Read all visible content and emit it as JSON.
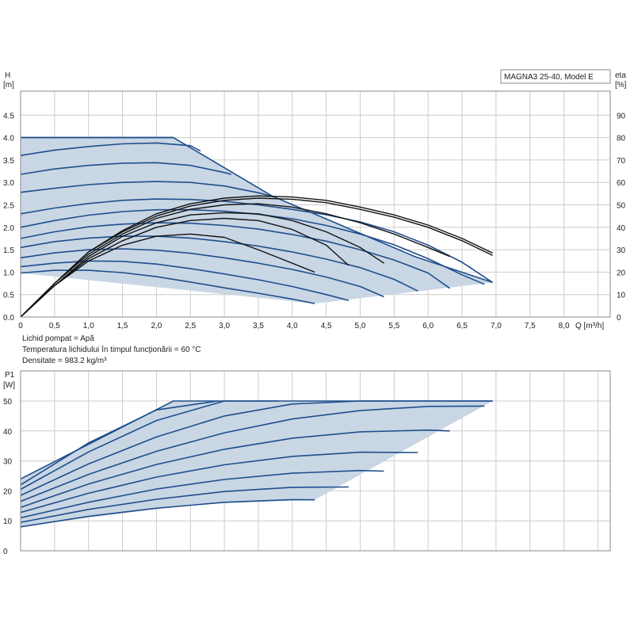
{
  "chart_data": [
    {
      "type": "line",
      "title": "MAGNA3 25-40, Model E",
      "xlabel": "Q [m³/h]",
      "ylabel": "H [m]",
      "y2label": "eta [%]",
      "xlim": [
        0,
        8.6
      ],
      "ylim": [
        0,
        5.0
      ],
      "y2lim": [
        0,
        100
      ],
      "x_ticks": [
        "0",
        "0,5",
        "1,0",
        "1,5",
        "2,0",
        "2,5",
        "3,0",
        "3,5",
        "4,0",
        "4,5",
        "5,0",
        "5,5",
        "6,0",
        "6,5",
        "7,0",
        "7,5",
        "8,0"
      ],
      "y_ticks": [
        "0.0",
        "0.5",
        "1.0",
        "1.5",
        "2.0",
        "2.5",
        "3.0",
        "3.5",
        "4.0",
        "4.5"
      ],
      "y2_ticks": [
        "0",
        "10",
        "20",
        "30",
        "40",
        "50",
        "60",
        "70",
        "80",
        "90"
      ],
      "grid": true,
      "operating_area": [
        [
          0,
          4.0
        ],
        [
          2.25,
          4.0
        ],
        [
          3.7,
          2.7
        ],
        [
          5.8,
          1.35
        ],
        [
          6.95,
          0.77
        ],
        [
          4.33,
          0.3
        ],
        [
          0,
          0.98
        ]
      ],
      "series": [
        {
          "x": [
            0,
            2.25,
            3.7,
            5.8,
            6.95
          ],
          "y": [
            4.0,
            4.0,
            2.7,
            1.35,
            0.77
          ]
        },
        {
          "x": [
            0,
            0.5,
            1.0,
            1.5,
            2.0,
            2.5,
            3.0,
            3.5,
            4.0,
            4.33
          ],
          "y": [
            0.98,
            1.04,
            1.04,
            0.99,
            0.9,
            0.78,
            0.65,
            0.53,
            0.4,
            0.3
          ]
        },
        {
          "x": [
            0,
            0.5,
            1.0,
            1.5,
            2.0,
            2.5,
            3.0,
            3.5,
            4.0,
            4.5,
            4.83
          ],
          "y": [
            1.12,
            1.2,
            1.25,
            1.24,
            1.18,
            1.08,
            0.96,
            0.83,
            0.68,
            0.5,
            0.37
          ]
        },
        {
          "x": [
            0,
            0.5,
            1.0,
            1.5,
            2.0,
            2.5,
            3.0,
            3.5,
            4.0,
            4.5,
            5.0,
            5.35
          ],
          "y": [
            1.32,
            1.43,
            1.5,
            1.52,
            1.49,
            1.42,
            1.32,
            1.2,
            1.06,
            0.89,
            0.68,
            0.45
          ]
        },
        {
          "x": [
            0,
            0.5,
            1.0,
            1.5,
            2.0,
            2.5,
            3.0,
            3.5,
            4.0,
            4.5,
            5.0,
            5.5,
            5.85
          ],
          "y": [
            1.55,
            1.68,
            1.76,
            1.8,
            1.8,
            1.76,
            1.68,
            1.58,
            1.45,
            1.29,
            1.1,
            0.84,
            0.58
          ]
        },
        {
          "x": [
            0,
            0.5,
            1.0,
            1.5,
            2.0,
            2.5,
            3.0,
            3.5,
            4.0,
            4.5,
            5.0,
            5.5,
            6.0,
            6.32
          ],
          "y": [
            1.75,
            1.9,
            2.01,
            2.07,
            2.1,
            2.09,
            2.04,
            1.96,
            1.84,
            1.69,
            1.5,
            1.27,
            0.98,
            0.64
          ]
        },
        {
          "x": [
            0,
            0.5,
            1.0,
            1.5,
            2.0,
            2.5,
            3.0,
            3.5,
            4.0,
            4.5,
            5.0,
            5.5,
            6.0,
            6.5,
            6.83
          ],
          "y": [
            2.0,
            2.15,
            2.27,
            2.35,
            2.39,
            2.39,
            2.36,
            2.29,
            2.19,
            2.04,
            1.85,
            1.61,
            1.3,
            0.94,
            0.73
          ]
        },
        {
          "x": [
            0,
            0.5,
            1.0,
            1.5,
            2.0,
            2.5,
            3.0,
            3.5,
            4.0,
            4.5,
            5.0,
            5.5,
            6.0,
            6.5,
            6.95
          ],
          "y": [
            2.3,
            2.43,
            2.53,
            2.6,
            2.63,
            2.62,
            2.58,
            2.5,
            2.4,
            2.28,
            2.12,
            1.9,
            1.6,
            1.22,
            0.77
          ]
        },
        {
          "x": [
            0,
            0.5,
            1.0,
            1.5,
            2.0,
            2.5,
            3.0,
            3.5,
            3.75
          ],
          "y": [
            2.78,
            2.87,
            2.95,
            3.0,
            3.02,
            3.0,
            2.92,
            2.77,
            2.67
          ]
        },
        {
          "x": [
            0,
            0.5,
            1.0,
            1.5,
            2.0,
            2.5,
            3.0,
            3.1
          ],
          "y": [
            3.18,
            3.3,
            3.38,
            3.43,
            3.44,
            3.38,
            3.22,
            3.18
          ]
        },
        {
          "x": [
            0,
            0.5,
            1.0,
            1.5,
            2.0,
            2.5,
            2.65
          ],
          "y": [
            3.6,
            3.72,
            3.8,
            3.86,
            3.88,
            3.82,
            3.7
          ]
        },
        {
          "x": [
            0,
            1.0,
            2.0,
            2.25
          ],
          "y": [
            4.0,
            4.0,
            4.0,
            4.0
          ]
        },
        {
          "x": [
            0,
            0.5,
            1.0,
            1.5,
            2.0,
            2.5,
            3.0,
            3.5,
            4.0,
            4.33
          ],
          "y": [
            0,
            14,
            25,
            32,
            36,
            37,
            35.5,
            30,
            24,
            20
          ],
          "axis": "eta"
        },
        {
          "x": [
            0,
            0.5,
            1.0,
            1.5,
            2.0,
            2.5,
            3.0,
            3.5,
            4.0,
            4.5,
            4.83
          ],
          "y": [
            0,
            14,
            26,
            34,
            40,
            43,
            44,
            43,
            39,
            32,
            23
          ],
          "axis": "eta"
        },
        {
          "x": [
            0,
            0.5,
            1.0,
            1.5,
            2.0,
            2.5,
            3.0,
            3.5,
            4.0,
            4.5,
            5.0,
            5.35
          ],
          "y": [
            0,
            14,
            27,
            36,
            42,
            45.5,
            46.5,
            46,
            43,
            38,
            31,
            24
          ],
          "axis": "eta"
        },
        {
          "x": [
            0,
            0.5,
            1.0,
            1.5,
            2.0,
            2.5,
            3.0,
            3.5,
            4.0,
            4.5,
            5.0,
            5.5,
            6.0,
            6.32
          ],
          "y": [
            0,
            15,
            28,
            37,
            44,
            48,
            50,
            50.5,
            49,
            46,
            42,
            37,
            31,
            27
          ],
          "axis": "eta"
        },
        {
          "x": [
            0,
            0.5,
            1.0,
            1.5,
            2.0,
            2.5,
            3.0,
            3.5,
            4.0,
            4.5,
            5.0,
            5.5,
            6.0,
            6.5,
            6.95
          ],
          "y": [
            0,
            15,
            29,
            38,
            45,
            49.5,
            52,
            53,
            52.5,
            51,
            48,
            44.5,
            40,
            34,
            27.5
          ],
          "axis": "eta"
        },
        {
          "x": [
            0,
            0.5,
            1.0,
            1.5,
            2.0,
            2.5,
            3.0,
            3.5,
            4.0,
            4.5,
            5.0,
            5.5,
            6.0,
            6.5,
            6.95
          ],
          "y": [
            0,
            15,
            29,
            38.5,
            46,
            50.5,
            53,
            54,
            53.5,
            52,
            49,
            45.5,
            41,
            35,
            28.5
          ],
          "axis": "eta"
        }
      ]
    },
    {
      "type": "line",
      "xlabel": "",
      "ylabel": "P1 [W]",
      "xlim": [
        0,
        8.6
      ],
      "ylim": [
        0,
        60
      ],
      "y_ticks": [
        "0",
        "10",
        "20",
        "30",
        "40",
        "50"
      ],
      "grid": true,
      "operating_area": [
        [
          0,
          24
        ],
        [
          2.25,
          50
        ],
        [
          6.95,
          50
        ],
        [
          4.33,
          17
        ],
        [
          2.5,
          15.5
        ],
        [
          0,
          8
        ]
      ],
      "series": [
        {
          "x": [
            0,
            2.25,
            6.95
          ],
          "y": [
            24,
            50,
            50
          ]
        },
        {
          "x": [
            0,
            1.0,
            2.0,
            3.0,
            4.0,
            4.33
          ],
          "y": [
            8,
            11.5,
            14.2,
            16.2,
            17.1,
            17
          ]
        },
        {
          "x": [
            0,
            1.0,
            2.0,
            3.0,
            4.0,
            4.83
          ],
          "y": [
            9.5,
            13.8,
            17.2,
            19.8,
            21.2,
            21.3
          ]
        },
        {
          "x": [
            0,
            1.0,
            2.0,
            3.0,
            4.0,
            5.0,
            5.35
          ],
          "y": [
            11,
            16.2,
            20.6,
            23.8,
            25.9,
            26.8,
            26.6
          ]
        },
        {
          "x": [
            0,
            1.0,
            2.0,
            3.0,
            4.0,
            5.0,
            5.85
          ],
          "y": [
            12.8,
            19.2,
            24.6,
            28.7,
            31.5,
            32.9,
            32.8
          ]
        },
        {
          "x": [
            0,
            1.0,
            2.0,
            3.0,
            4.0,
            5.0,
            6.0,
            6.32
          ],
          "y": [
            14.5,
            22.3,
            28.8,
            33.9,
            37.6,
            39.7,
            40.3,
            40
          ]
        },
        {
          "x": [
            0,
            1.0,
            2.0,
            3.0,
            4.0,
            5.0,
            6.0,
            6.83
          ],
          "y": [
            16.5,
            25.5,
            33.2,
            39.4,
            44.0,
            46.8,
            48.2,
            48.3
          ]
        },
        {
          "x": [
            0,
            1.0,
            2.0,
            3.0,
            4.0,
            5.0,
            6.0,
            6.95
          ],
          "y": [
            18.5,
            29,
            38,
            45,
            49,
            50,
            50,
            50
          ]
        },
        {
          "x": [
            0,
            1.0,
            2.0,
            3.0,
            3.8
          ],
          "y": [
            20.5,
            33,
            43.5,
            50,
            50
          ]
        },
        {
          "x": [
            0,
            1.0,
            2.0,
            2.9
          ],
          "y": [
            22,
            36,
            47,
            50
          ]
        }
      ]
    }
  ],
  "notes": {
    "line1": "Lichid pompat = Apă",
    "line2": "Temperatura lichidului în timpul funcţionării = 60 °C",
    "line3": "Densitate = 983.2 kg/m³"
  },
  "model_label": "MAGNA3 25-40, Model E",
  "axis_titles": {
    "h_name": "H",
    "h_unit": "[m]",
    "eta_name": "eta",
    "eta_unit": "[%]",
    "q_label": "Q [m³/h]",
    "p1_name": "P1",
    "p1_unit": "[W]"
  },
  "colors": {
    "curve": "#1f4e8c",
    "area": "#c9d6e4",
    "eta_curve": "#111111",
    "grid": "#cccccc",
    "frame": "#888888"
  }
}
